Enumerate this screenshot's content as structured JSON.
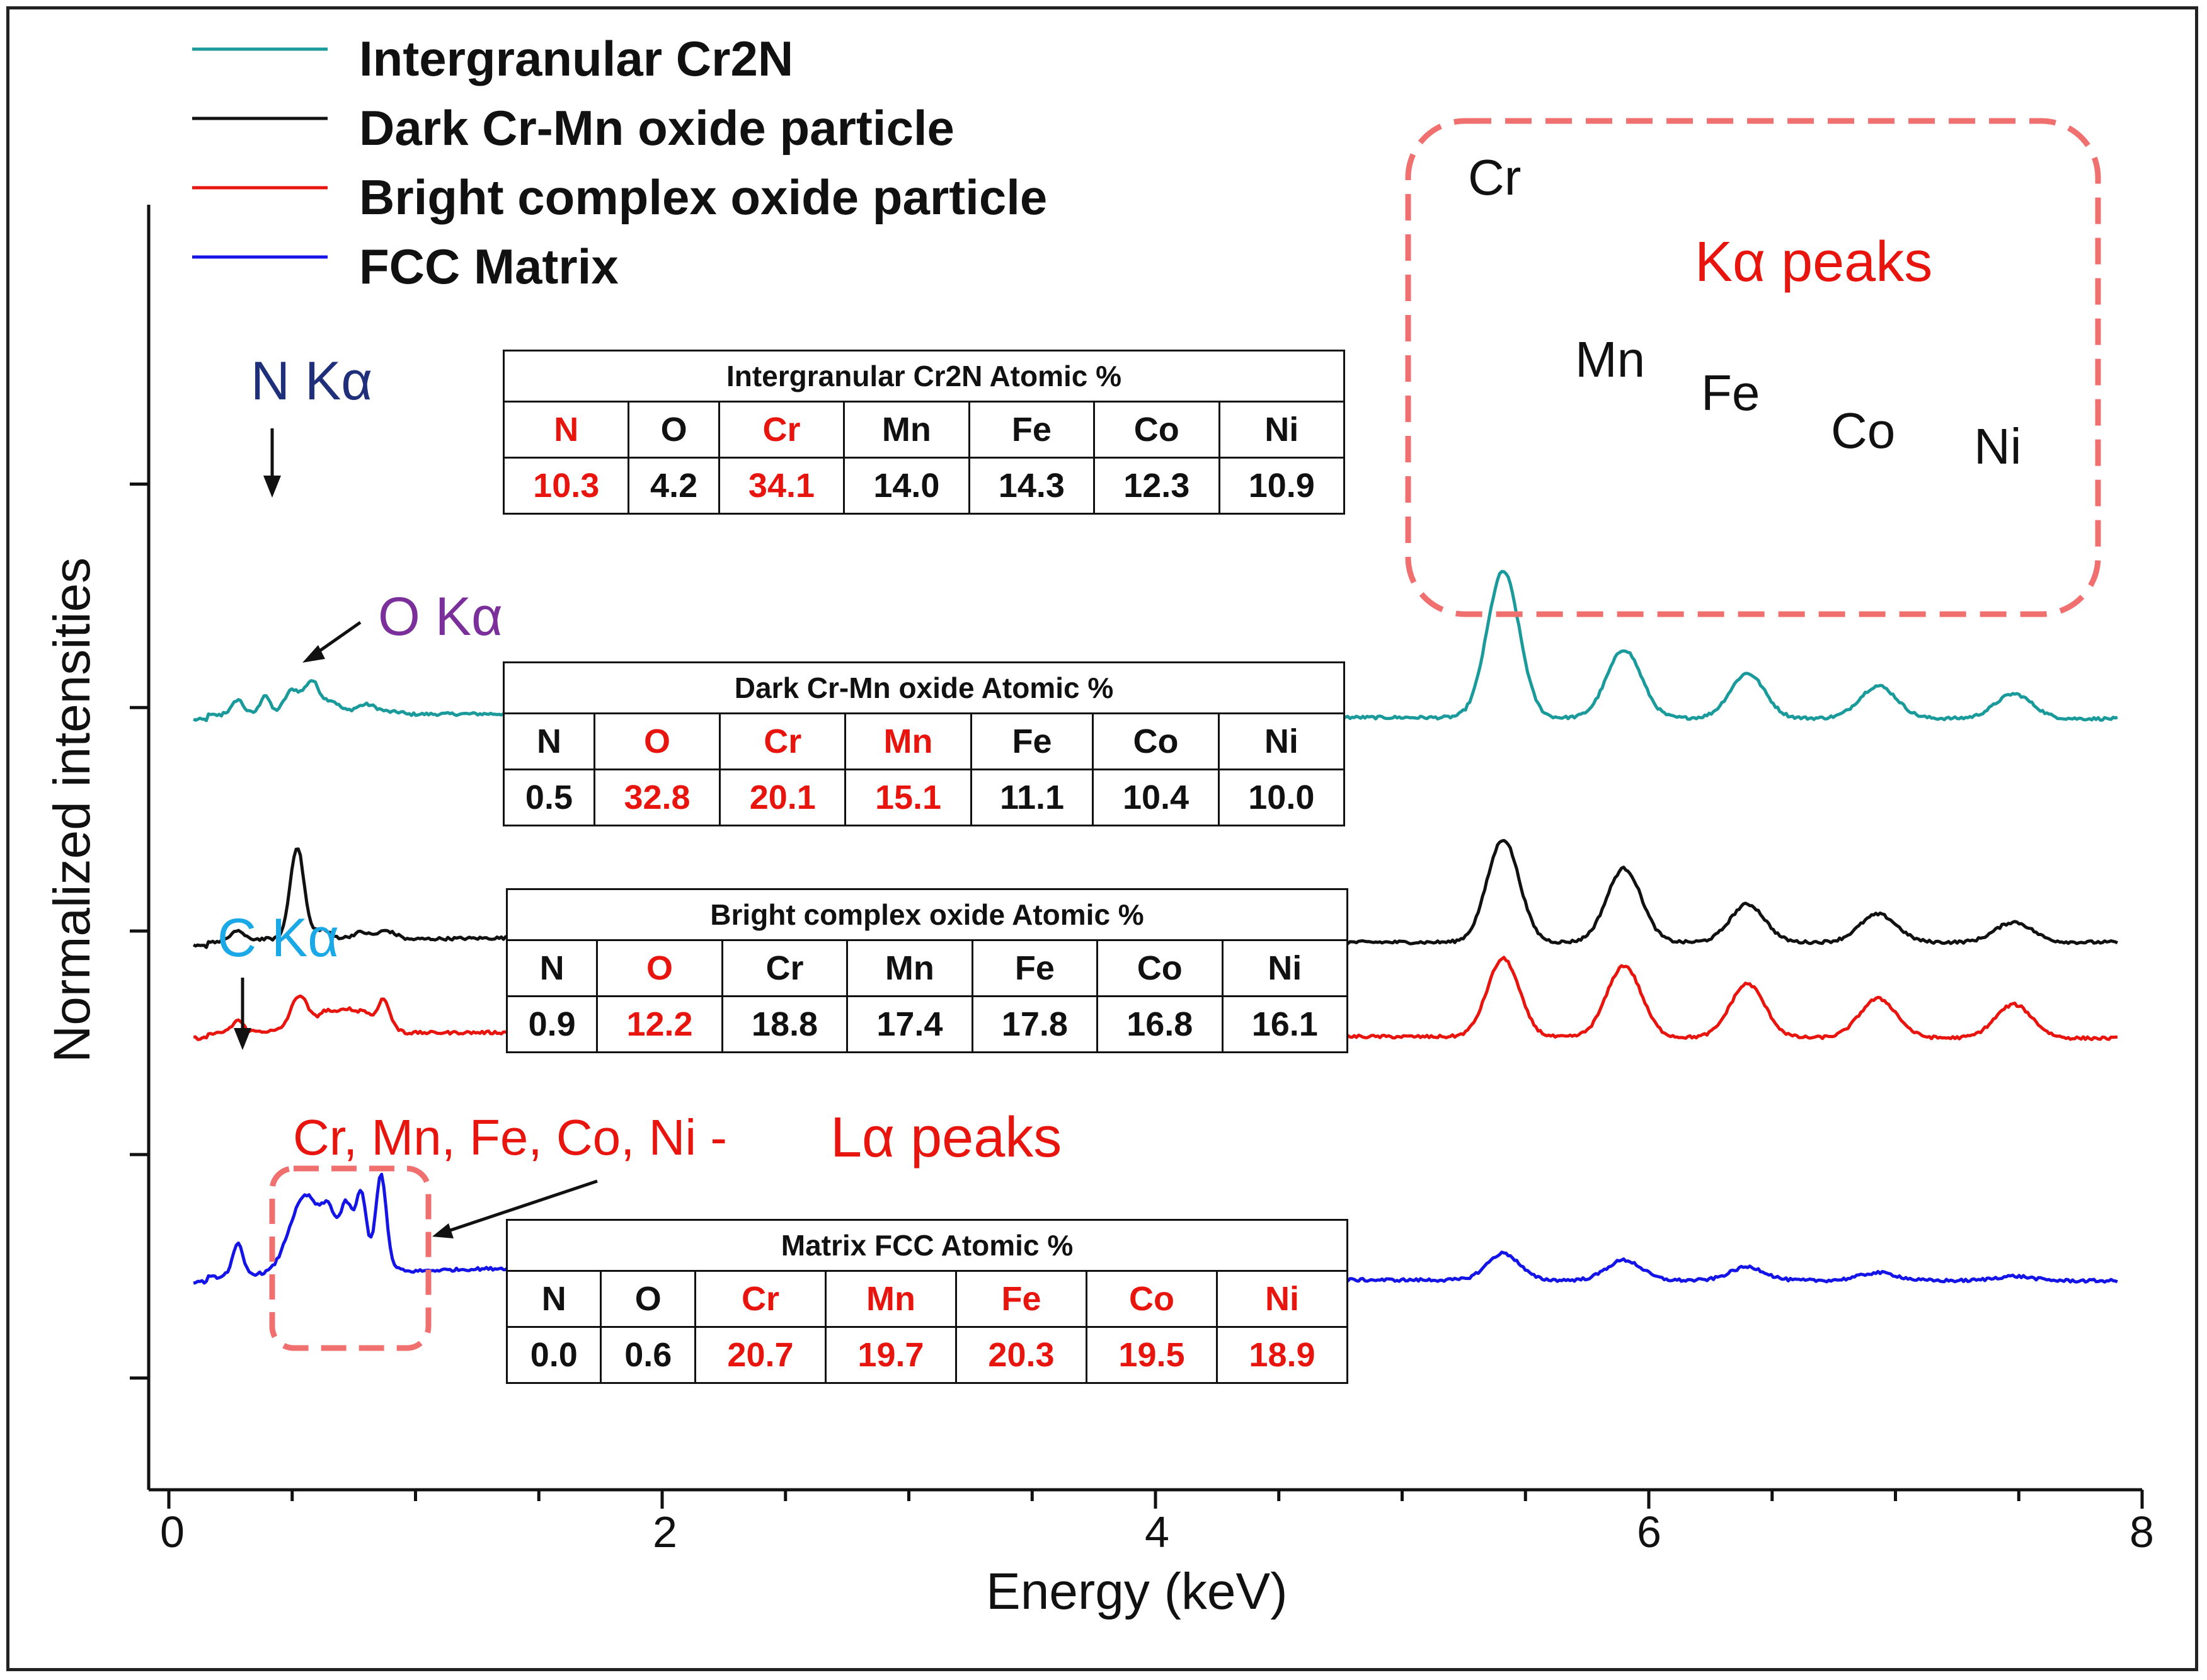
{
  "chart_data": {
    "type": "line",
    "title": "",
    "xlabel": "Energy (keV)",
    "ylabel": "Normalized intensities",
    "xlim": [
      0,
      8
    ],
    "xticks": [
      0,
      2,
      4,
      6,
      8
    ],
    "xtick_labels": [
      "0",
      "2",
      "4",
      "6",
      "8"
    ],
    "ylim": [
      0,
      1.15
    ],
    "yticks": [
      0.1,
      0.3,
      0.5,
      0.7,
      0.9
    ],
    "grid": false,
    "legend_position": "top-left",
    "series": [
      {
        "name": "Intergranular Cr2N",
        "color": "#1a9a9a",
        "baseline": 0.693,
        "tail": 0.69,
        "continuum": 0.002,
        "peaks": [
          {
            "e": 0.28,
            "h": 0.012,
            "w": 0.02
          },
          {
            "e": 0.39,
            "h": 0.016,
            "w": 0.018
          },
          {
            "e": 0.5,
            "h": 0.02,
            "w": 0.03
          },
          {
            "e": 0.58,
            "h": 0.028,
            "w": 0.03
          },
          {
            "e": 0.66,
            "h": 0.01,
            "w": 0.03
          },
          {
            "e": 0.8,
            "h": 0.007,
            "w": 0.04
          },
          {
            "e": 5.41,
            "h": 0.131,
            "w": 0.065
          },
          {
            "e": 5.9,
            "h": 0.061,
            "w": 0.07
          },
          {
            "e": 6.4,
            "h": 0.04,
            "w": 0.07
          },
          {
            "e": 6.93,
            "h": 0.029,
            "w": 0.075
          },
          {
            "e": 7.48,
            "h": 0.022,
            "w": 0.075
          }
        ]
      },
      {
        "name": "Dark Cr-Mn oxide particle",
        "color": "#111111",
        "baseline": 0.49,
        "tail": 0.49,
        "continuum": 0.004,
        "peaks": [
          {
            "e": 0.28,
            "h": 0.008,
            "w": 0.02
          },
          {
            "e": 0.52,
            "h": 0.082,
            "w": 0.028
          },
          {
            "e": 0.62,
            "h": 0.008,
            "w": 0.03
          },
          {
            "e": 0.78,
            "h": 0.005,
            "w": 0.03
          },
          {
            "e": 0.88,
            "h": 0.006,
            "w": 0.03
          },
          {
            "e": 5.41,
            "h": 0.092,
            "w": 0.065
          },
          {
            "e": 5.9,
            "h": 0.066,
            "w": 0.07
          },
          {
            "e": 6.4,
            "h": 0.034,
            "w": 0.07
          },
          {
            "e": 6.93,
            "h": 0.025,
            "w": 0.075
          },
          {
            "e": 7.48,
            "h": 0.018,
            "w": 0.075
          }
        ]
      },
      {
        "name": "Bright complex oxide particle",
        "color": "#e8150f",
        "baseline": 0.408,
        "tail": 0.404,
        "continuum": 0.002,
        "peaks": [
          {
            "e": 0.28,
            "h": 0.01,
            "w": 0.02
          },
          {
            "e": 0.53,
            "h": 0.032,
            "w": 0.035
          },
          {
            "e": 0.64,
            "h": 0.018,
            "w": 0.035
          },
          {
            "e": 0.72,
            "h": 0.018,
            "w": 0.03
          },
          {
            "e": 0.79,
            "h": 0.017,
            "w": 0.03
          },
          {
            "e": 0.87,
            "h": 0.028,
            "w": 0.025
          },
          {
            "e": 5.41,
            "h": 0.07,
            "w": 0.065
          },
          {
            "e": 5.9,
            "h": 0.064,
            "w": 0.07
          },
          {
            "e": 6.4,
            "h": 0.048,
            "w": 0.07
          },
          {
            "e": 6.93,
            "h": 0.035,
            "w": 0.075
          },
          {
            "e": 7.48,
            "h": 0.03,
            "w": 0.075
          }
        ]
      },
      {
        "name": "FCC Matrix",
        "color": "#1414e6",
        "baseline": 0.189,
        "tail": 0.187,
        "continuum": 0.01,
        "peaks": [
          {
            "e": 0.28,
            "h": 0.027,
            "w": 0.02
          },
          {
            "e": 0.52,
            "h": 0.046,
            "w": 0.05
          },
          {
            "e": 0.58,
            "h": 0.04,
            "w": 0.04
          },
          {
            "e": 0.65,
            "h": 0.05,
            "w": 0.03
          },
          {
            "e": 0.72,
            "h": 0.058,
            "w": 0.025
          },
          {
            "e": 0.78,
            "h": 0.068,
            "w": 0.022
          },
          {
            "e": 0.86,
            "h": 0.085,
            "w": 0.022
          },
          {
            "e": 5.41,
            "h": 0.024,
            "w": 0.065
          },
          {
            "e": 5.9,
            "h": 0.018,
            "w": 0.07
          },
          {
            "e": 6.4,
            "h": 0.012,
            "w": 0.07
          },
          {
            "e": 6.93,
            "h": 0.007,
            "w": 0.075
          },
          {
            "e": 7.48,
            "h": 0.004,
            "w": 0.075
          }
        ]
      }
    ],
    "annotations": [
      {
        "text": "N Kα",
        "color": "#1f2f7a"
      },
      {
        "text": "O Kα",
        "color": "#7a2f9a"
      },
      {
        "text": "C Kα",
        "color": "#1aa8e6"
      },
      {
        "text": "Cr, Mn, Fe, Co, Ni - ",
        "color": "#e8150f"
      },
      {
        "text": "Lα peaks",
        "color": "#e8150f"
      },
      {
        "text": "Kα peaks",
        "color": "#e8150f"
      }
    ],
    "peak_labels": [
      "Cr",
      "Mn",
      "Fe",
      "Co",
      "Ni"
    ],
    "highlight_color": "#f07070"
  },
  "tables": [
    {
      "title": "Intergranular Cr2N  Atomic %",
      "headers": [
        "N",
        "O",
        "Cr",
        "Mn",
        "Fe",
        "Co",
        "Ni"
      ],
      "values": [
        "10.3",
        "4.2",
        "34.1",
        "14.0",
        "14.3",
        "12.3",
        "10.9"
      ]
    },
    {
      "title": "Dark Cr-Mn oxide Atomic %",
      "headers": [
        "N",
        "O",
        "Cr",
        "Mn",
        "Fe",
        "Co",
        "Ni"
      ],
      "values": [
        "0.5",
        "32.8",
        "20.1",
        "15.1",
        "11.1",
        "10.4",
        "10.0"
      ]
    },
    {
      "title": "Bright complex oxide Atomic %",
      "headers": [
        "N",
        "O",
        "Cr",
        "Mn",
        "Fe",
        "Co",
        "Ni"
      ],
      "values": [
        "0.9",
        "12.2",
        "18.8",
        "17.4",
        "17.8",
        "16.8",
        "16.1"
      ]
    },
    {
      "title": "Matrix FCC Atomic %",
      "headers": [
        "N",
        "O",
        "Cr",
        "Mn",
        "Fe",
        "Co",
        "Ni"
      ],
      "values": [
        "0.0",
        "0.6",
        "20.7",
        "19.7",
        "20.3",
        "19.5",
        "18.9"
      ]
    }
  ]
}
